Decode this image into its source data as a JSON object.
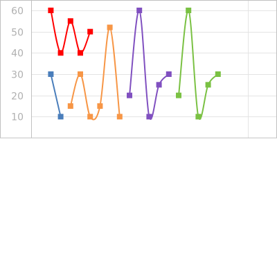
{
  "chart_data": {
    "type": "line",
    "title": "",
    "xlabel": "",
    "ylabel": "",
    "x": [
      1,
      2,
      3,
      4,
      5,
      6,
      7,
      8,
      9,
      10,
      11,
      12,
      13,
      14,
      15,
      16,
      17,
      18,
      19,
      20
    ],
    "xlim": [
      -1,
      24
    ],
    "ylim": [
      0,
      60
    ],
    "yticks": [
      "10",
      "20",
      "30",
      "40",
      "50",
      "60"
    ],
    "ytick_values": [
      10,
      20,
      30,
      40,
      50,
      60
    ],
    "grid": true,
    "legend": "none",
    "series": [
      {
        "name": "blue",
        "color": "#4a7ebb",
        "marker": "square",
        "smooth": false,
        "x": [
          1,
          2
        ],
        "values": [
          30,
          10
        ]
      },
      {
        "name": "orange",
        "color": "#f79646",
        "marker": "square",
        "smooth": true,
        "x": [
          3,
          4,
          5,
          6,
          7,
          8
        ],
        "values": [
          15,
          30,
          10,
          15,
          52,
          10
        ]
      },
      {
        "name": "red",
        "color": "#ff0000",
        "marker": "square",
        "smooth": true,
        "x": [
          1,
          2,
          3,
          4,
          5
        ],
        "values": [
          60,
          40,
          55,
          40,
          50
        ]
      },
      {
        "name": "purple",
        "color": "#8050c0",
        "marker": "square",
        "smooth": true,
        "x": [
          9,
          10,
          11,
          12,
          13
        ],
        "values": [
          20,
          60,
          10,
          25,
          30
        ]
      },
      {
        "name": "green",
        "color": "#7ac143",
        "marker": "square",
        "smooth": true,
        "x": [
          14,
          15,
          16,
          17,
          18
        ],
        "values": [
          20,
          60,
          10,
          25,
          30
        ]
      }
    ],
    "colors": {
      "axis": "#c0c0c0",
      "grid": "#e4e4e4",
      "tick_label": "#b0b0b0"
    }
  }
}
